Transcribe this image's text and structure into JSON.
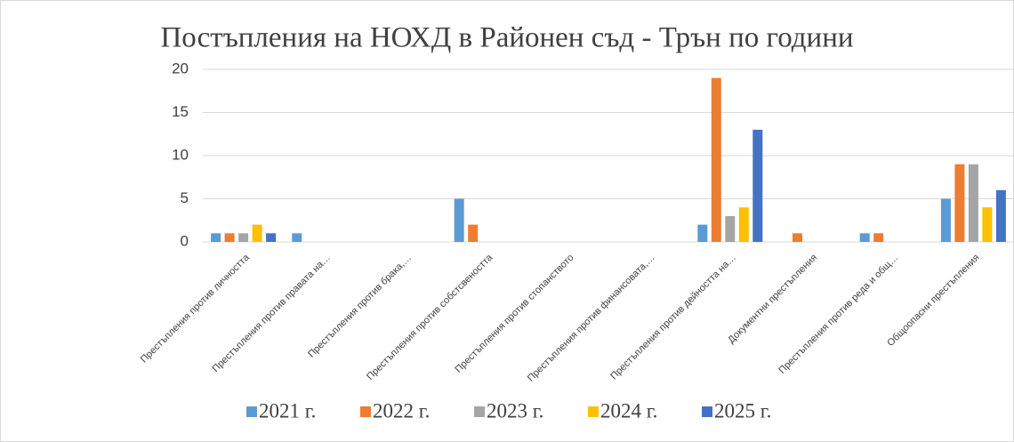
{
  "chart_data": {
    "type": "bar",
    "title": "Постъпления на НОХД в Районен съд - Трън по години",
    "categories": [
      "Престъпления против личността",
      "Престъпления против правата на…",
      "Престъпления против брака,…",
      "Престъпления против собстсвеността",
      "Престъпления против стопанството",
      "Престъпления против финансовата,…",
      "Престъпления против дейността на…",
      "Документни престъпления",
      "Престъпления против реда и общ…",
      "Общоопасни престъпления"
    ],
    "series": [
      {
        "name": "2021 г.",
        "color": "#5b9bd5",
        "values": [
          1,
          1,
          0,
          5,
          0,
          0,
          2,
          0,
          1,
          5
        ]
      },
      {
        "name": "2022 г.",
        "color": "#ed7d31",
        "values": [
          1,
          0,
          0,
          2,
          0,
          0,
          19,
          1,
          1,
          9
        ]
      },
      {
        "name": "2023 г.",
        "color": "#a5a5a5",
        "values": [
          1,
          0,
          0,
          0,
          0,
          0,
          3,
          0,
          0,
          9
        ]
      },
      {
        "name": "2024 г.",
        "color": "#ffc000",
        "values": [
          2,
          0,
          0,
          0,
          0,
          0,
          4,
          0,
          0,
          4
        ]
      },
      {
        "name": "2025 г.",
        "color": "#4472c4",
        "values": [
          1,
          0,
          0,
          0,
          0,
          0,
          13,
          0,
          0,
          6
        ]
      }
    ],
    "ylim": [
      0,
      20
    ],
    "yticks": [
      0,
      5,
      10,
      15,
      20
    ],
    "grid": true,
    "legend": "bottom"
  }
}
